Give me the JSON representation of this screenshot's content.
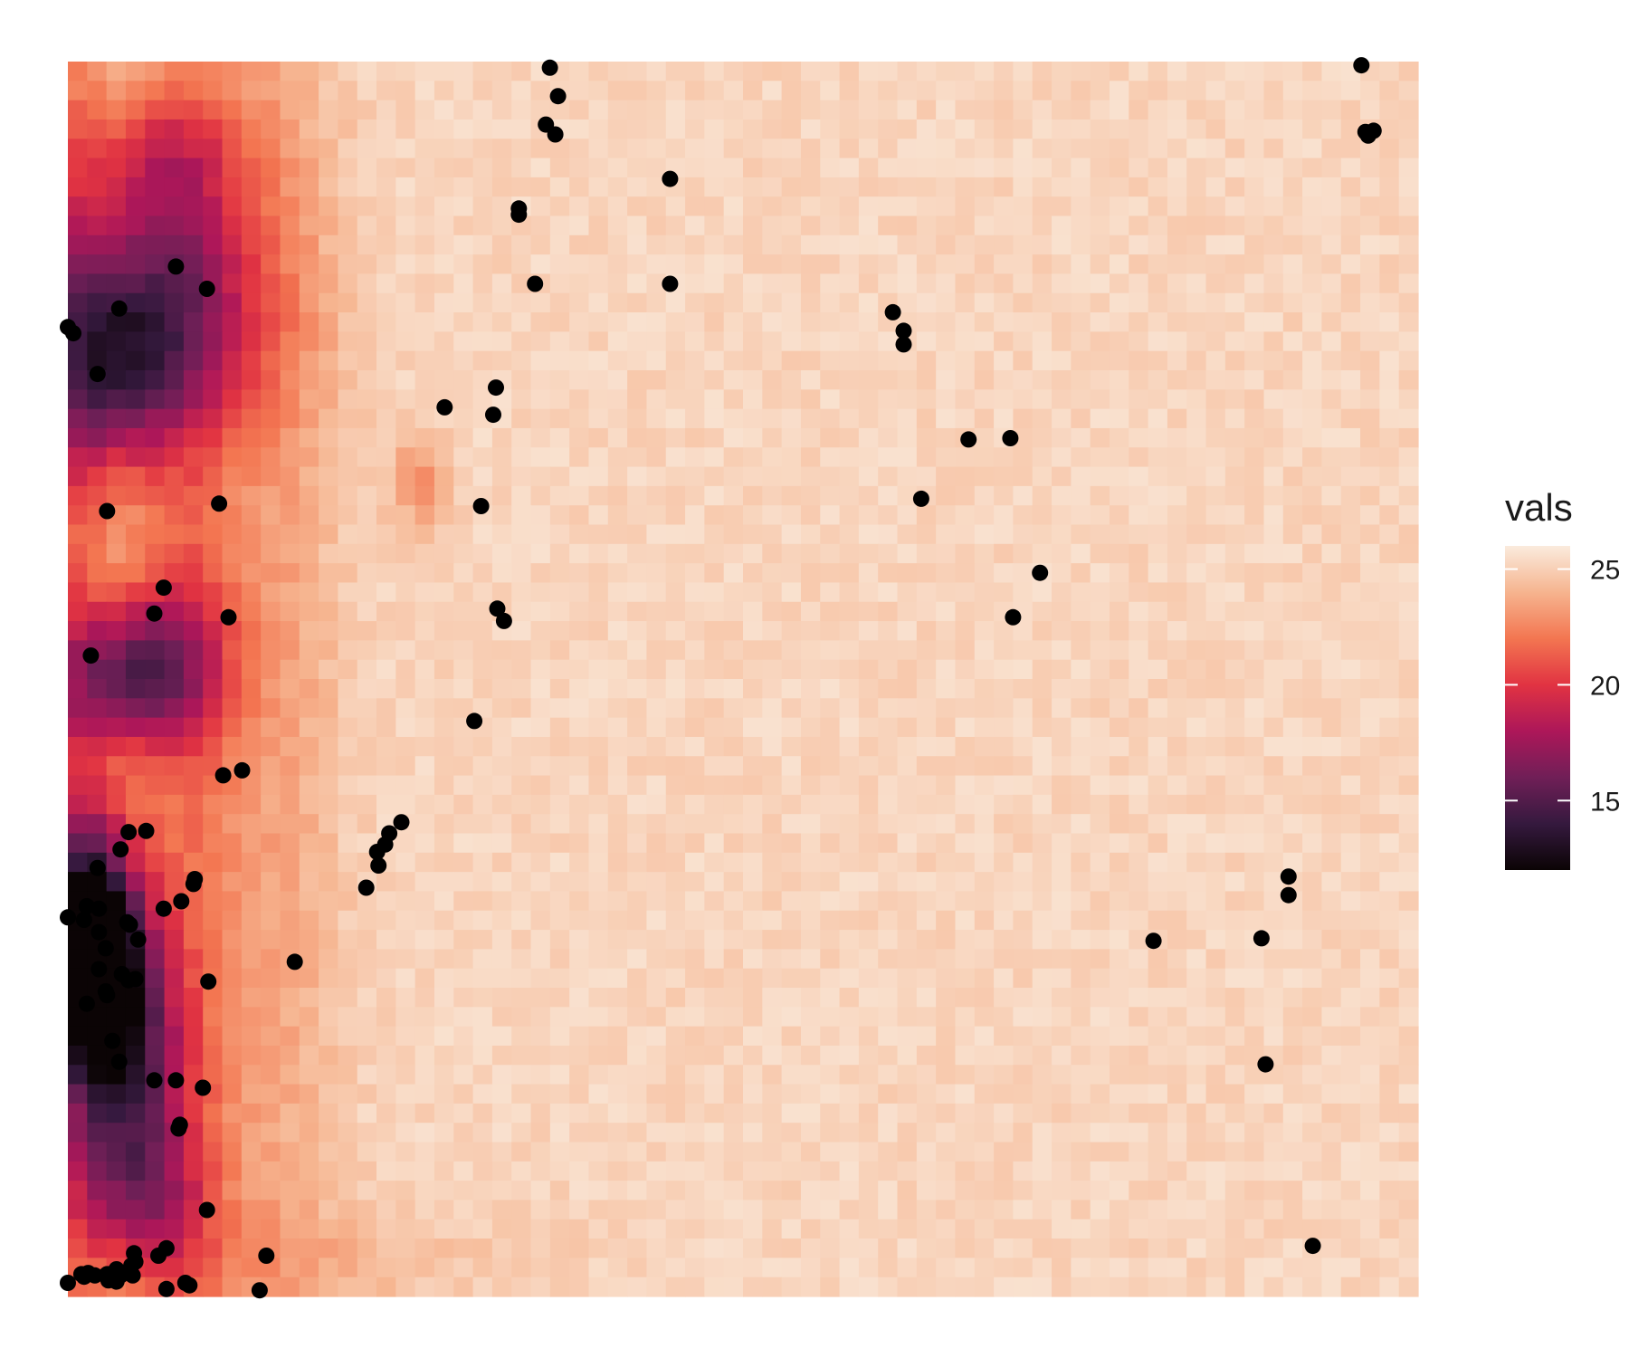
{
  "chart_data": {
    "type": "heatmap",
    "title": "",
    "xlabel": "",
    "ylabel": "",
    "grid": false,
    "axes_visible": false,
    "legend": {
      "title": "vals",
      "placement": "right",
      "range": [
        12,
        26
      ],
      "ticks": [
        {
          "value": 25,
          "label": "25"
        },
        {
          "value": 20,
          "label": "20"
        },
        {
          "value": 15,
          "label": "15"
        }
      ],
      "colormap": "rocket",
      "colors": [
        {
          "value": 12,
          "color": "#0b0405"
        },
        {
          "value": 14,
          "color": "#35193e"
        },
        {
          "value": 16,
          "color": "#701f57"
        },
        {
          "value": 18,
          "color": "#ad1759"
        },
        {
          "value": 20,
          "color": "#e13342"
        },
        {
          "value": 22,
          "color": "#f37651"
        },
        {
          "value": 24,
          "color": "#f6b48f"
        },
        {
          "value": 26,
          "color": "#faebdd"
        }
      ]
    },
    "extent": {
      "x": [
        0,
        1
      ],
      "y": [
        0,
        1
      ]
    },
    "grid_size": [
      70,
      64
    ],
    "background_value": 25.2,
    "field_features": [
      {
        "x": 0.02,
        "y": 0.29,
        "sx": 0.025,
        "sy": 0.07,
        "depth": 13.5
      },
      {
        "x": 0.04,
        "y": 0.2,
        "sx": 0.03,
        "sy": 0.07,
        "depth": 9.0
      },
      {
        "x": 0.05,
        "y": 0.08,
        "sx": 0.035,
        "sy": 0.05,
        "depth": 6.0
      },
      {
        "x": 0.04,
        "y": 0.5,
        "sx": 0.035,
        "sy": 0.04,
        "depth": 6.0
      },
      {
        "x": 0.07,
        "y": 0.52,
        "sx": 0.04,
        "sy": 0.05,
        "depth": 4.0
      },
      {
        "x": 0.06,
        "y": 0.79,
        "sx": 0.06,
        "sy": 0.07,
        "depth": 8.0
      },
      {
        "x": 0.03,
        "y": 0.74,
        "sx": 0.03,
        "sy": 0.06,
        "depth": 5.0
      },
      {
        "x": 0.07,
        "y": 0.92,
        "sx": 0.05,
        "sy": 0.05,
        "depth": 4.0
      },
      {
        "x": 0.005,
        "y": 0.5,
        "sx": 0.015,
        "sy": 0.5,
        "depth": 3.0
      },
      {
        "x": 0.09,
        "y": 0.4,
        "sx": 0.03,
        "sy": 0.5,
        "depth": 3.0
      },
      {
        "x": 0.16,
        "y": 0.5,
        "sx": 0.03,
        "sy": 0.6,
        "depth": 1.5
      },
      {
        "x": 0.26,
        "y": 0.66,
        "sx": 0.015,
        "sy": 0.025,
        "depth": 2.5
      },
      {
        "x": 0.18,
        "y": 0.03,
        "sx": 0.1,
        "sy": 0.03,
        "depth": 1.0
      }
    ],
    "points": [
      {
        "x": 0.357,
        "y": 0.995
      },
      {
        "x": 0.363,
        "y": 0.972
      },
      {
        "x": 0.354,
        "y": 0.949
      },
      {
        "x": 0.361,
        "y": 0.941
      },
      {
        "x": 0.958,
        "y": 0.997
      },
      {
        "x": 0.961,
        "y": 0.943
      },
      {
        "x": 0.967,
        "y": 0.944
      },
      {
        "x": 0.963,
        "y": 0.94
      },
      {
        "x": 0.446,
        "y": 0.905
      },
      {
        "x": 0.334,
        "y": 0.881
      },
      {
        "x": 0.334,
        "y": 0.876
      },
      {
        "x": 0.08,
        "y": 0.834
      },
      {
        "x": 0.103,
        "y": 0.816
      },
      {
        "x": 0.346,
        "y": 0.82
      },
      {
        "x": 0.446,
        "y": 0.82
      },
      {
        "x": 0.038,
        "y": 0.8
      },
      {
        "x": 0.0,
        "y": 0.785
      },
      {
        "x": 0.004,
        "y": 0.78
      },
      {
        "x": 0.611,
        "y": 0.797
      },
      {
        "x": 0.619,
        "y": 0.782
      },
      {
        "x": 0.619,
        "y": 0.771
      },
      {
        "x": 0.022,
        "y": 0.747
      },
      {
        "x": 0.317,
        "y": 0.736
      },
      {
        "x": 0.279,
        "y": 0.72
      },
      {
        "x": 0.315,
        "y": 0.714
      },
      {
        "x": 0.667,
        "y": 0.694
      },
      {
        "x": 0.698,
        "y": 0.695
      },
      {
        "x": 0.112,
        "y": 0.642
      },
      {
        "x": 0.029,
        "y": 0.636
      },
      {
        "x": 0.306,
        "y": 0.64
      },
      {
        "x": 0.632,
        "y": 0.646
      },
      {
        "x": 0.72,
        "y": 0.586
      },
      {
        "x": 0.071,
        "y": 0.574
      },
      {
        "x": 0.064,
        "y": 0.553
      },
      {
        "x": 0.119,
        "y": 0.55
      },
      {
        "x": 0.318,
        "y": 0.557
      },
      {
        "x": 0.323,
        "y": 0.547
      },
      {
        "x": 0.7,
        "y": 0.55
      },
      {
        "x": 0.017,
        "y": 0.519
      },
      {
        "x": 0.301,
        "y": 0.466
      },
      {
        "x": 0.115,
        "y": 0.422
      },
      {
        "x": 0.129,
        "y": 0.426
      },
      {
        "x": 0.045,
        "y": 0.376
      },
      {
        "x": 0.058,
        "y": 0.377
      },
      {
        "x": 0.039,
        "y": 0.362
      },
      {
        "x": 0.247,
        "y": 0.384
      },
      {
        "x": 0.238,
        "y": 0.375
      },
      {
        "x": 0.235,
        "y": 0.366
      },
      {
        "x": 0.229,
        "y": 0.36
      },
      {
        "x": 0.23,
        "y": 0.349
      },
      {
        "x": 0.221,
        "y": 0.331
      },
      {
        "x": 0.022,
        "y": 0.347
      },
      {
        "x": 0.094,
        "y": 0.338
      },
      {
        "x": 0.093,
        "y": 0.334
      },
      {
        "x": 0.014,
        "y": 0.316
      },
      {
        "x": 0.023,
        "y": 0.314
      },
      {
        "x": 0.084,
        "y": 0.32
      },
      {
        "x": 0.071,
        "y": 0.314
      },
      {
        "x": 0.0,
        "y": 0.307
      },
      {
        "x": 0.012,
        "y": 0.305
      },
      {
        "x": 0.044,
        "y": 0.303
      },
      {
        "x": 0.046,
        "y": 0.301
      },
      {
        "x": 0.023,
        "y": 0.295
      },
      {
        "x": 0.052,
        "y": 0.289
      },
      {
        "x": 0.028,
        "y": 0.282
      },
      {
        "x": 0.023,
        "y": 0.265
      },
      {
        "x": 0.04,
        "y": 0.261
      },
      {
        "x": 0.045,
        "y": 0.256
      },
      {
        "x": 0.05,
        "y": 0.257
      },
      {
        "x": 0.028,
        "y": 0.247
      },
      {
        "x": 0.029,
        "y": 0.244
      },
      {
        "x": 0.014,
        "y": 0.237
      },
      {
        "x": 0.168,
        "y": 0.271
      },
      {
        "x": 0.104,
        "y": 0.255
      },
      {
        "x": 0.033,
        "y": 0.207
      },
      {
        "x": 0.038,
        "y": 0.19
      },
      {
        "x": 0.884,
        "y": 0.29
      },
      {
        "x": 0.904,
        "y": 0.325
      },
      {
        "x": 0.904,
        "y": 0.34
      },
      {
        "x": 0.804,
        "y": 0.288
      },
      {
        "x": 0.064,
        "y": 0.175
      },
      {
        "x": 0.08,
        "y": 0.175
      },
      {
        "x": 0.1,
        "y": 0.169
      },
      {
        "x": 0.082,
        "y": 0.136
      },
      {
        "x": 0.083,
        "y": 0.139
      },
      {
        "x": 0.887,
        "y": 0.188
      },
      {
        "x": 0.103,
        "y": 0.07
      },
      {
        "x": 0.147,
        "y": 0.033
      },
      {
        "x": 0.073,
        "y": 0.039
      },
      {
        "x": 0.049,
        "y": 0.035
      },
      {
        "x": 0.067,
        "y": 0.033
      },
      {
        "x": 0.05,
        "y": 0.028
      },
      {
        "x": 0.047,
        "y": 0.025
      },
      {
        "x": 0.036,
        "y": 0.022
      },
      {
        "x": 0.039,
        "y": 0.017
      },
      {
        "x": 0.044,
        "y": 0.02
      },
      {
        "x": 0.048,
        "y": 0.017
      },
      {
        "x": 0.029,
        "y": 0.018
      },
      {
        "x": 0.02,
        "y": 0.017
      },
      {
        "x": 0.015,
        "y": 0.019
      },
      {
        "x": 0.01,
        "y": 0.018
      },
      {
        "x": 0.012,
        "y": 0.016
      },
      {
        "x": 0.0,
        "y": 0.011
      },
      {
        "x": 0.036,
        "y": 0.012
      },
      {
        "x": 0.03,
        "y": 0.013
      },
      {
        "x": 0.087,
        "y": 0.011
      },
      {
        "x": 0.09,
        "y": 0.009
      },
      {
        "x": 0.073,
        "y": 0.006
      },
      {
        "x": 0.142,
        "y": 0.005
      },
      {
        "x": 0.922,
        "y": 0.041
      }
    ]
  }
}
